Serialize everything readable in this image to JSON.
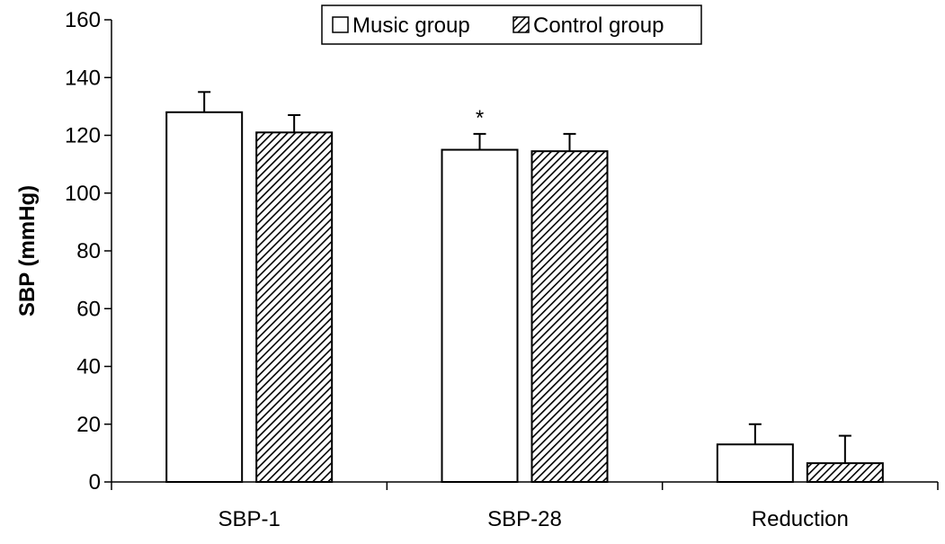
{
  "chart_data": {
    "type": "bar",
    "title": "",
    "xlabel": "",
    "ylabel": "SBP (mmHg)",
    "ylim": [
      0,
      160
    ],
    "yticks": [
      0,
      20,
      40,
      60,
      80,
      100,
      120,
      140,
      160
    ],
    "categories": [
      "SBP-1",
      "SBP-28",
      "Reduction"
    ],
    "series": [
      {
        "name": "Music group",
        "pattern": "open",
        "values": [
          128,
          115,
          13
        ],
        "errors": [
          7,
          5.5,
          7
        ]
      },
      {
        "name": "Control group",
        "pattern": "hatched",
        "values": [
          121,
          114.5,
          6.5
        ],
        "errors": [
          6,
          6,
          9.5
        ]
      }
    ],
    "annotations": [
      {
        "text": "*",
        "category": "SBP-28",
        "series": "Music group"
      }
    ],
    "legend_placement": "top",
    "grid": false,
    "colors": {
      "bar_fill": "#ffffff",
      "bar_stroke": "#000000",
      "hatch": "#000000"
    }
  }
}
